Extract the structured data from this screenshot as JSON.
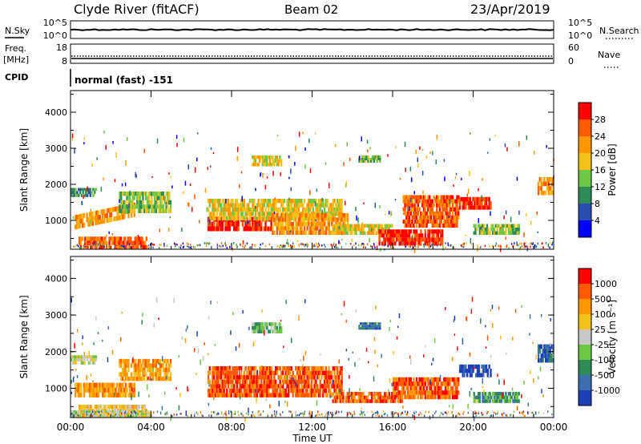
{
  "header": {
    "station": "Clyde River (fitACF)",
    "beam": "Beam 02",
    "date": "23/Apr/2019"
  },
  "top_panels": {
    "nsky_label": "N.Sky",
    "nsearch_label": "N.Search",
    "noise_ticks_left": [
      "10^5",
      "10^0"
    ],
    "noise_ticks_right": [
      "10^5",
      "10^0"
    ],
    "freq_label_1": "Freq.",
    "freq_label_2": "[MHz]",
    "freq_ticks": [
      "18",
      "8"
    ],
    "nave_label": "Nave",
    "nave_ticks": [
      "60",
      "0"
    ],
    "cpid_label": "CPID",
    "cpid_text": "normal (fast) -151"
  },
  "chart_data": [
    {
      "type": "heatmap",
      "panel": "power",
      "ylabel": "Slant Range [km]",
      "yticks": [
        "1000",
        "2000",
        "3000",
        "4000"
      ],
      "ylim": [
        200,
        4600
      ],
      "colorbar_label": "Power [dB]",
      "colorbar_ticks": [
        "4",
        "8",
        "12",
        "16",
        "20",
        "24",
        "28"
      ],
      "colors": [
        "#0000ff",
        "#2a4fb0",
        "#2e8b57",
        "#6ec846",
        "#f2c21a",
        "#ff9800",
        "#ff5a00",
        "#ff0000"
      ],
      "blobs": [
        {
          "t": [
            0.2,
            3.2
          ],
          "r": [
            750,
            1150
          ],
          "level": 5,
          "note": "rising arc"
        },
        {
          "t": [
            2.4,
            5.0
          ],
          "r": [
            1200,
            1800
          ],
          "level": 3
        },
        {
          "t": [
            0.0,
            1.3
          ],
          "r": [
            1650,
            1900
          ],
          "level": 2
        },
        {
          "t": [
            0.4,
            3.8
          ],
          "r": [
            200,
            550
          ],
          "level": 6
        },
        {
          "t": [
            6.8,
            10.0
          ],
          "r": [
            700,
            1100
          ],
          "level": 7
        },
        {
          "t": [
            6.8,
            13.5
          ],
          "r": [
            1000,
            1600
          ],
          "level": 4
        },
        {
          "t": [
            10.0,
            13.8
          ],
          "r": [
            600,
            1200
          ],
          "level": 5
        },
        {
          "t": [
            13.0,
            16.0
          ],
          "r": [
            600,
            900
          ],
          "level": 4
        },
        {
          "t": [
            15.3,
            18.5
          ],
          "r": [
            300,
            750
          ],
          "level": 7
        },
        {
          "t": [
            16.5,
            19.3
          ],
          "r": [
            800,
            1700
          ],
          "level": 6
        },
        {
          "t": [
            19.3,
            20.9
          ],
          "r": [
            1300,
            1650
          ],
          "level": 7
        },
        {
          "t": [
            20.0,
            22.3
          ],
          "r": [
            600,
            900
          ],
          "level": 3
        },
        {
          "t": [
            9.0,
            10.5
          ],
          "r": [
            2500,
            2800
          ],
          "level": 4
        },
        {
          "t": [
            14.3,
            15.4
          ],
          "r": [
            2600,
            2800
          ],
          "level": 3
        },
        {
          "t": [
            23.2,
            24.0
          ],
          "r": [
            1700,
            2200
          ],
          "level": 5
        }
      ]
    },
    {
      "type": "heatmap",
      "panel": "velocity",
      "ylabel": "Slant Range [km]",
      "yticks": [
        "1000",
        "2000",
        "3000",
        "4000"
      ],
      "ylim": [
        200,
        4600
      ],
      "colorbar_label": "Velocity [m s⁻¹]",
      "colorbar_ticks": [
        "1000",
        "500",
        "100",
        "25",
        "-25",
        "-100",
        "-500",
        "-1000"
      ],
      "colors": [
        "#1d3fb8",
        "#3d6fb0",
        "#2e8b57",
        "#6ec846",
        "#c8c8c8",
        "#f2c21a",
        "#ff9800",
        "#ff5a00",
        "#ff0000"
      ],
      "blobs": [
        {
          "t": [
            0.2,
            3.2
          ],
          "r": [
            750,
            1150
          ],
          "level": 6
        },
        {
          "t": [
            2.4,
            5.0
          ],
          "r": [
            1200,
            1800
          ],
          "level": 6
        },
        {
          "t": [
            0.0,
            1.3
          ],
          "r": [
            1650,
            1900
          ],
          "level": 4
        },
        {
          "t": [
            0.4,
            3.8
          ],
          "r": [
            200,
            550
          ],
          "level": 5
        },
        {
          "t": [
            6.8,
            13.5
          ],
          "r": [
            750,
            1600
          ],
          "level": 7
        },
        {
          "t": [
            13.0,
            16.5
          ],
          "r": [
            600,
            900
          ],
          "level": 7
        },
        {
          "t": [
            16.0,
            19.3
          ],
          "r": [
            700,
            1300
          ],
          "level": 7
        },
        {
          "t": [
            19.3,
            20.9
          ],
          "r": [
            1300,
            1650
          ],
          "level": 0
        },
        {
          "t": [
            20.0,
            22.3
          ],
          "r": [
            600,
            900
          ],
          "level": 2
        },
        {
          "t": [
            0.0,
            4.0
          ],
          "r": [
            200,
            400
          ],
          "level": 4
        },
        {
          "t": [
            9.0,
            10.5
          ],
          "r": [
            2500,
            2800
          ],
          "level": 3
        },
        {
          "t": [
            14.3,
            15.4
          ],
          "r": [
            2600,
            2800
          ],
          "level": 1
        },
        {
          "t": [
            23.2,
            24.0
          ],
          "r": [
            1700,
            2200
          ],
          "level": 1
        }
      ]
    }
  ],
  "xaxis": {
    "label": "Time UT",
    "ticks": [
      "00:00",
      "04:00",
      "08:00",
      "12:00",
      "16:00",
      "20:00",
      "00:00"
    ]
  }
}
